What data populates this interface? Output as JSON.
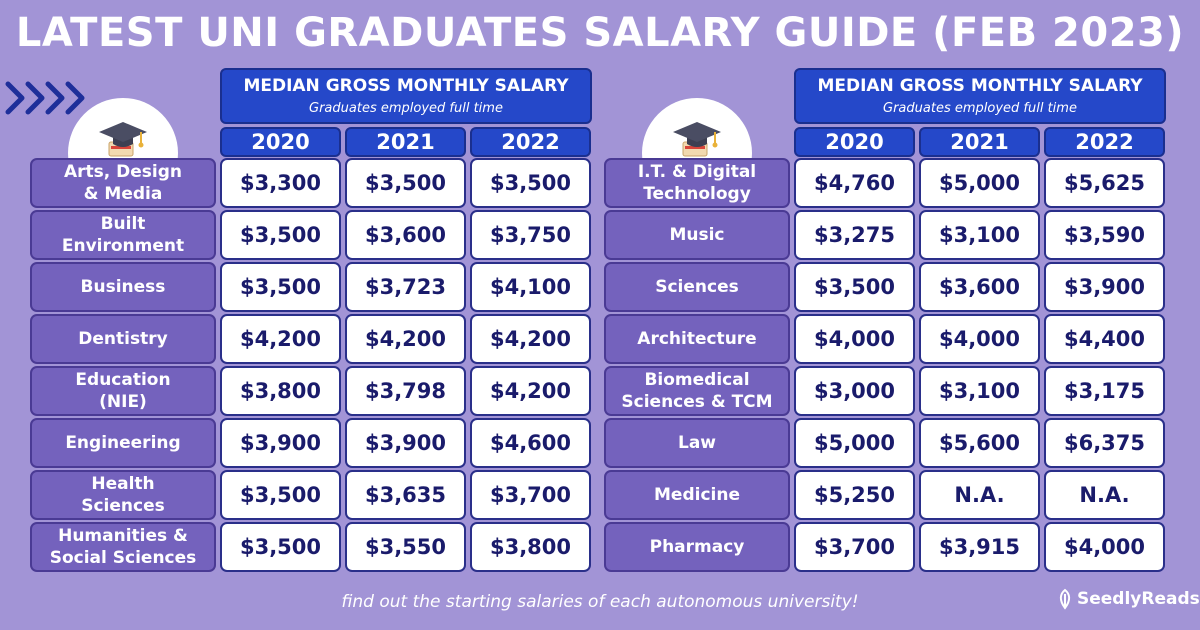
{
  "title": "LATEST UNI GRADUATES SALARY GUIDE (FEB 2023)",
  "header": {
    "main": "MEDIAN GROSS MONTHLY SALARY",
    "sub": "Graduates employed full time"
  },
  "years": [
    "2020",
    "2021",
    "2022"
  ],
  "left_rows": [
    {
      "label": "Arts, Design\n& Media",
      "values": [
        "$3,300",
        "$3,500",
        "$3,500"
      ]
    },
    {
      "label": "Built\nEnvironment",
      "values": [
        "$3,500",
        "$3,600",
        "$3,750"
      ]
    },
    {
      "label": "Business",
      "values": [
        "$3,500",
        "$3,723",
        "$4,100"
      ]
    },
    {
      "label": "Dentistry",
      "values": [
        "$4,200",
        "$4,200",
        "$4,200"
      ]
    },
    {
      "label": "Education\n(NIE)",
      "values": [
        "$3,800",
        "$3,798",
        "$4,200"
      ]
    },
    {
      "label": "Engineering",
      "values": [
        "$3,900",
        "$3,900",
        "$4,600"
      ]
    },
    {
      "label": "Health\nSciences",
      "values": [
        "$3,500",
        "$3,635",
        "$3,700"
      ]
    },
    {
      "label": "Humanities &\nSocial Sciences",
      "values": [
        "$3,500",
        "$3,550",
        "$3,800"
      ]
    }
  ],
  "right_rows": [
    {
      "label": "I.T. & Digital\nTechnology",
      "values": [
        "$4,760",
        "$5,000",
        "$5,625"
      ]
    },
    {
      "label": "Music",
      "values": [
        "$3,275",
        "$3,100",
        "$3,590"
      ]
    },
    {
      "label": "Sciences",
      "values": [
        "$3,500",
        "$3,600",
        "$3,900"
      ]
    },
    {
      "label": "Architecture",
      "values": [
        "$4,000",
        "$4,000",
        "$4,400"
      ]
    },
    {
      "label": "Biomedical\nSciences & TCM",
      "values": [
        "$3,000",
        "$3,100",
        "$3,175"
      ]
    },
    {
      "label": "Law",
      "values": [
        "$5,000",
        "$5,600",
        "$6,375"
      ]
    },
    {
      "label": "Medicine",
      "values": [
        "$5,250",
        "N.A.",
        "N.A."
      ]
    },
    {
      "label": "Pharmacy",
      "values": [
        "$3,700",
        "$3,915",
        "$4,000"
      ]
    }
  ],
  "footer": "find out the starting salaries of each autonomous university!",
  "brand": {
    "name": "SeedlyReads",
    "icon": "seedly-logo-icon"
  },
  "decor": {
    "left_arrows_icon": "chevrons-right-icon",
    "hat_icon": "graduation-cap-icon"
  },
  "colors": {
    "background": "#a294d6",
    "header_blue": "#2548c9",
    "label_purple": "#7462bd",
    "value_text": "#1a1b6b"
  }
}
